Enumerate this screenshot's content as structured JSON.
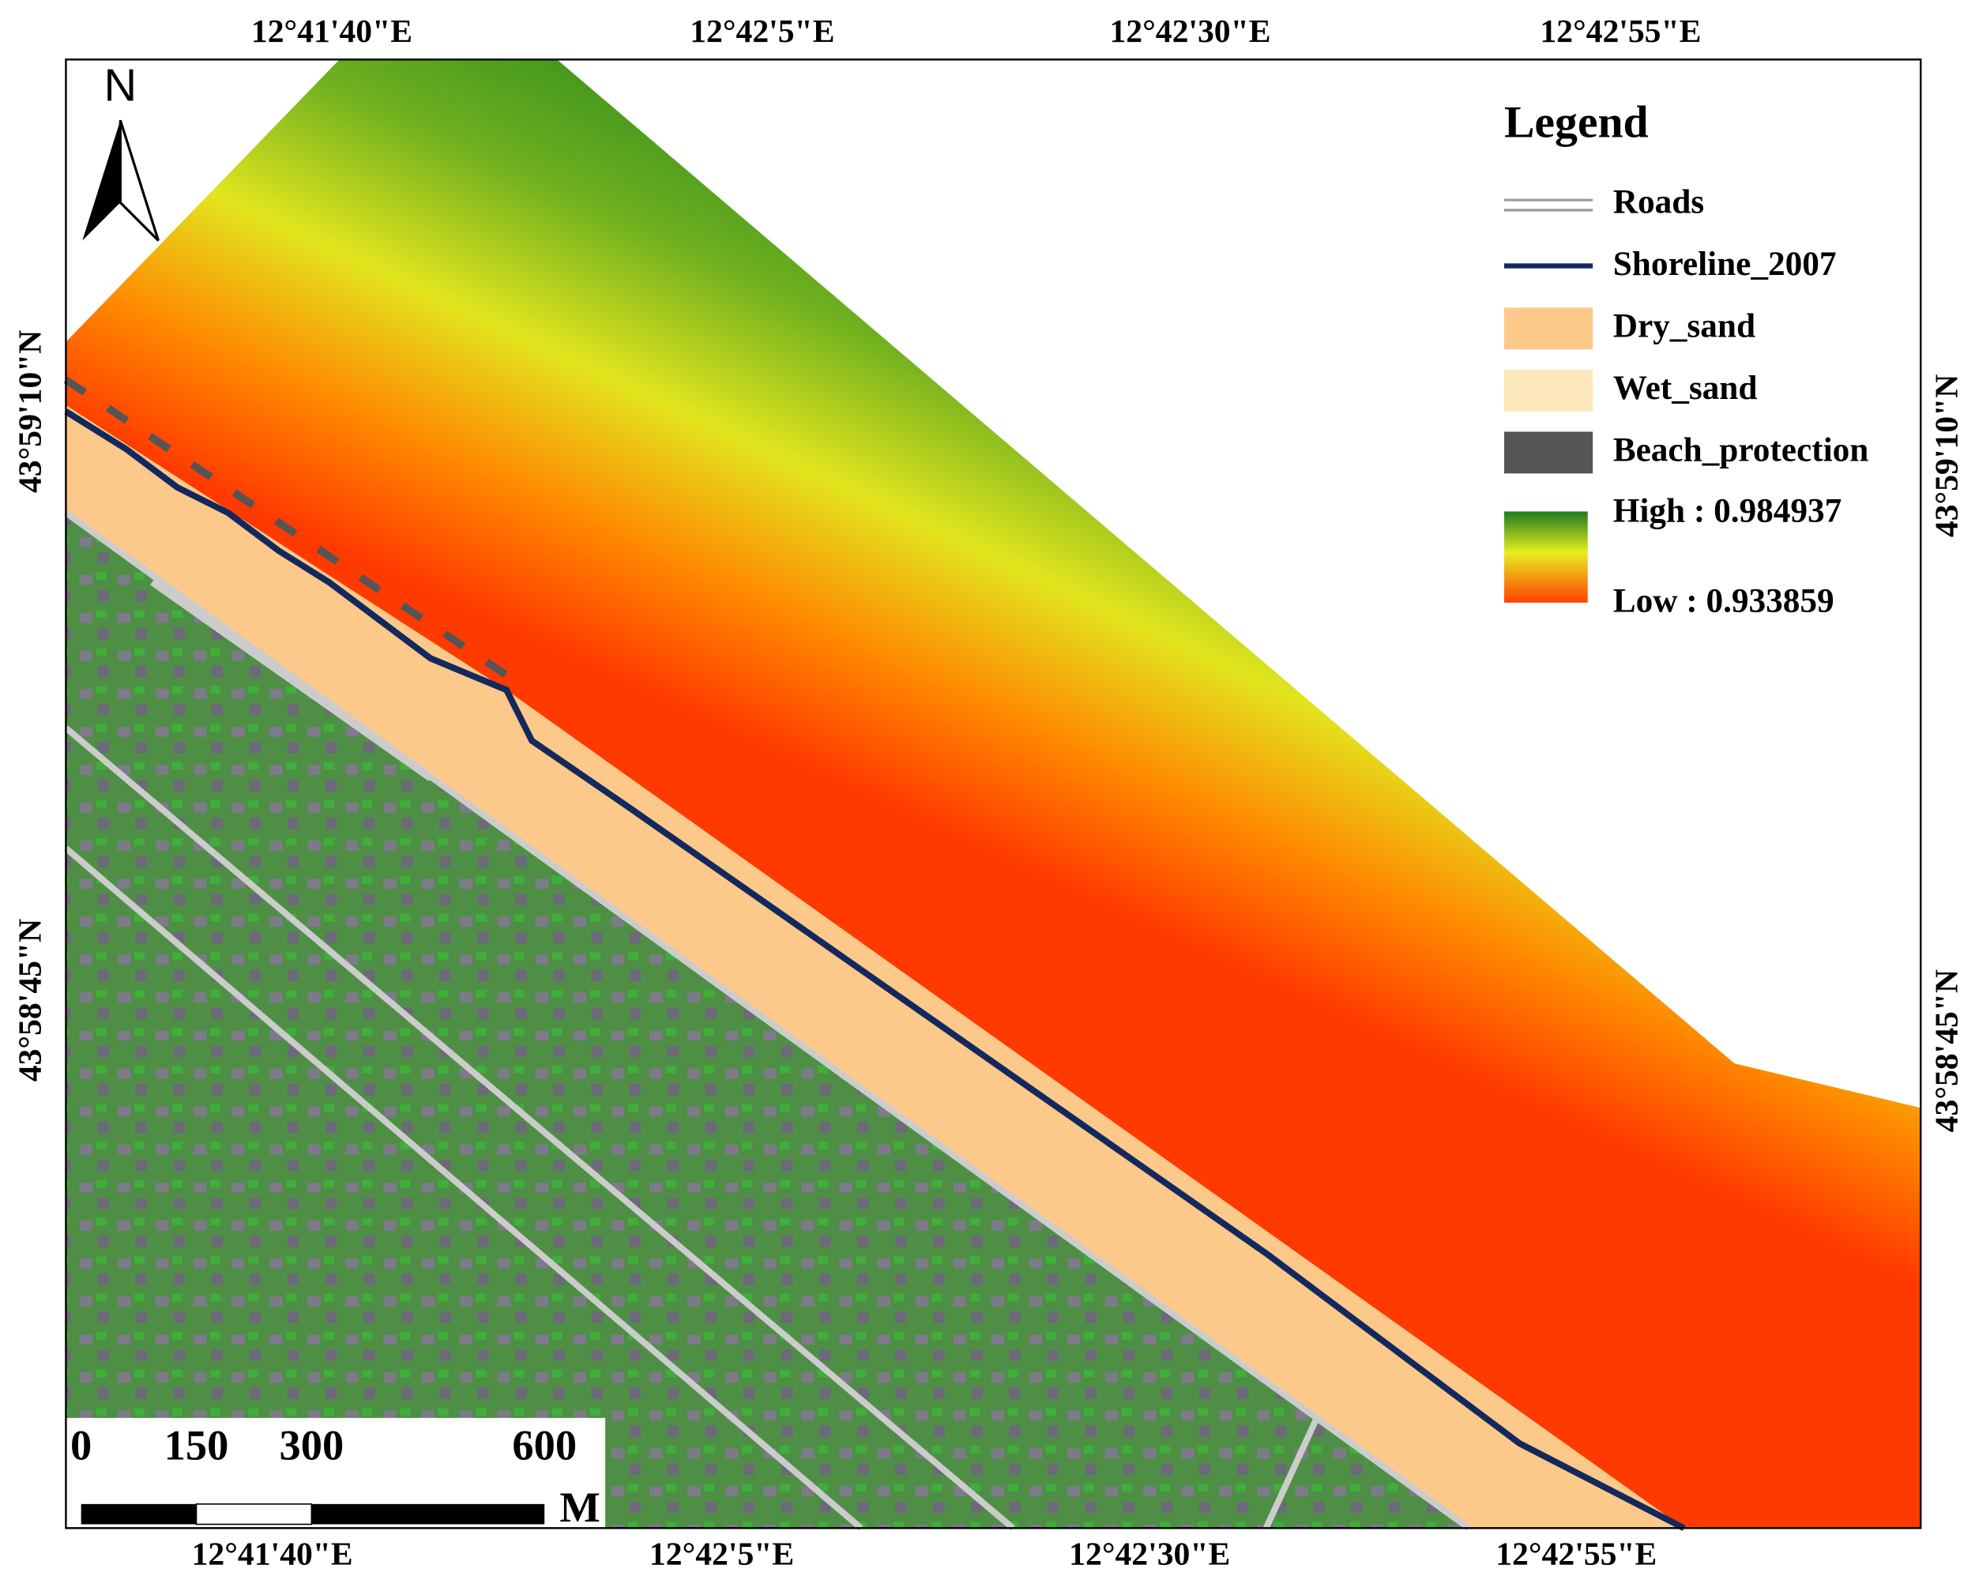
{
  "map": {
    "top_labels": [
      "12°41'40\"E",
      "12°42'5\"E",
      "12°42'30\"E",
      "12°42'55\"E"
    ],
    "bottom_labels": [
      "12°41'40\"E",
      "12°42'5\"E",
      "12°42'30\"E",
      "12°42'55\"E"
    ],
    "left_labels": [
      "43°59'10\"N",
      "43°58'45\"N"
    ],
    "right_labels": [
      "43°59'10\"N",
      "43°58'45\"N"
    ],
    "north": "N",
    "legend": {
      "title": "Legend",
      "items": [
        "Roads",
        "Shoreline_2007",
        "Dry_sand",
        "Wet_sand",
        "Beach_protection"
      ],
      "high": "High : 0.984937",
      "low": "Low : 0.933859"
    },
    "scale_bar": {
      "ticks": [
        0,
        150,
        300,
        600
      ],
      "unit": "M"
    }
  }
}
